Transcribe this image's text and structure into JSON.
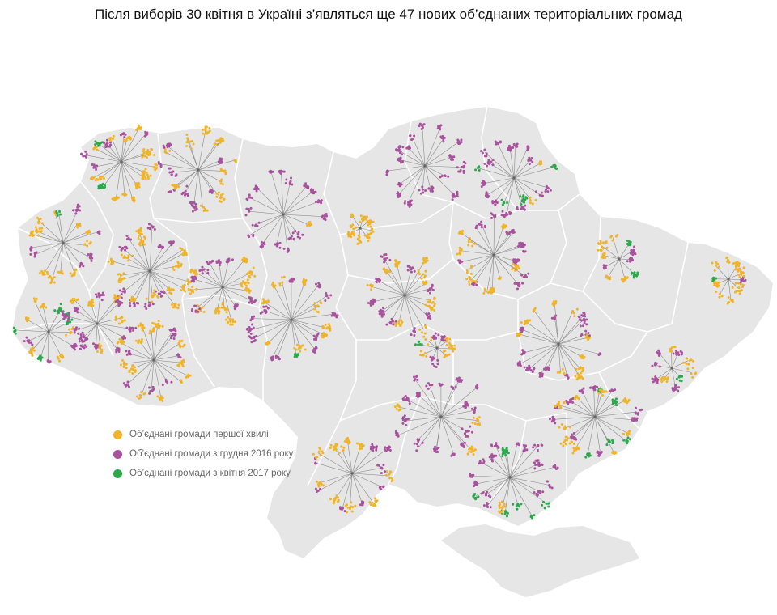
{
  "title": "Після виборів 30 квітня в Україні з’являться ще 47 нових об’єднаних територіальних громад",
  "colors": {
    "first_wave": "#f0b429",
    "dec_2016": "#a8529e",
    "apr_2017": "#2aa84a",
    "map_fill": "#e6e6e6",
    "border": "#ffffff",
    "line": "#8a8a8a"
  },
  "legend": [
    {
      "label": "Об’єднані громади першої хвилі",
      "color": "#f0b429"
    },
    {
      "label": "Об’єднані громади з грудня 2016 року",
      "color": "#a8529e"
    },
    {
      "label": "Об’єднані громади з квітня 2017 року",
      "color": "#2aa84a"
    }
  ]
}
